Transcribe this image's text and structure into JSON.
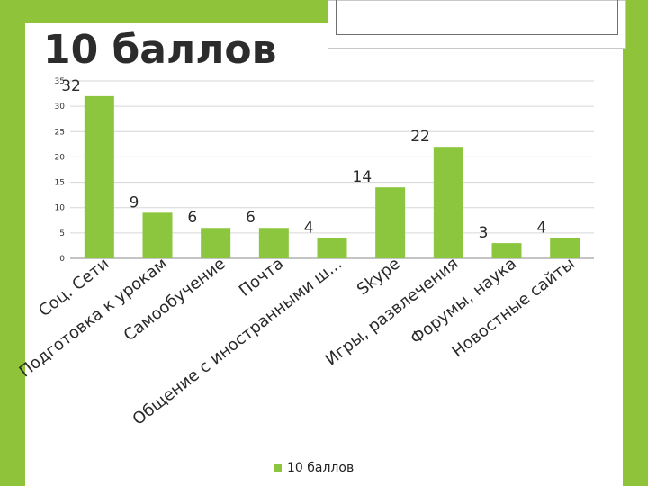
{
  "slide": {
    "title": "10 баллов",
    "accent_color": "#8fc33a"
  },
  "chart_data": {
    "type": "bar",
    "categories": [
      "Соц. Сети",
      "Подготовка к урокам",
      "Самообучение",
      "Почта",
      "Общение с иностранными ш...",
      "Skype",
      "Игры, развлечения",
      "Форумы, наука",
      "Новостные сайты"
    ],
    "series": [
      {
        "name": "10 баллов",
        "values": [
          32,
          9,
          6,
          6,
          4,
          14,
          22,
          3,
          4
        ],
        "color": "#8cc63f"
      }
    ],
    "ylim": [
      0,
      35
    ],
    "yticks": [
      0,
      5,
      10,
      15,
      20,
      25,
      30,
      35
    ],
    "grid": true,
    "legend_position": "bottom",
    "data_labels": true
  }
}
